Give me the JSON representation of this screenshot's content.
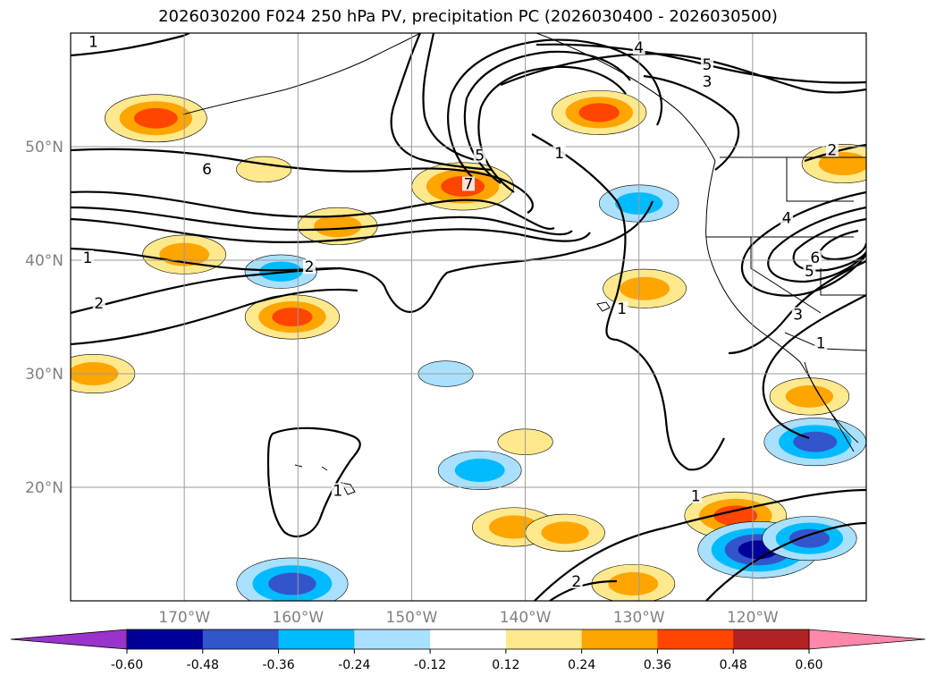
{
  "chart_data": {
    "type": "map-contour",
    "title": "2026030200 F024 250 hPa PV, precipitation PC (2026030400 - 2026030500)",
    "lat_range": [
      10,
      60
    ],
    "lon_range": [
      -180,
      -110
    ],
    "lat_ticks": [
      {
        "value": 50,
        "label": "50°N"
      },
      {
        "value": 40,
        "label": "40°N"
      },
      {
        "value": 30,
        "label": "30°N"
      },
      {
        "value": 20,
        "label": "20°N"
      }
    ],
    "lon_ticks": [
      {
        "value": -170,
        "label": "170°W"
      },
      {
        "value": -160,
        "label": "160°W"
      },
      {
        "value": -150,
        "label": "150°W"
      },
      {
        "value": -140,
        "label": "140°W"
      },
      {
        "value": -130,
        "label": "130°W"
      },
      {
        "value": -120,
        "label": "120°W"
      }
    ],
    "grid": true,
    "colorbar": {
      "levels": [
        "-0.60",
        "-0.48",
        "-0.36",
        "-0.24",
        "-0.12",
        "0.12",
        "0.24",
        "0.36",
        "0.48",
        "0.60"
      ],
      "colors": [
        "#9933cc",
        "#000099",
        "#3355cc",
        "#00bbff",
        "#aae0ff",
        "#ffffff",
        "#ffe98c",
        "#ffa500",
        "#ff4500",
        "#b22222",
        "#ff88aa"
      ],
      "extend": "both"
    },
    "pv_contour_labels": [
      {
        "text": "1",
        "lat": 59.0,
        "lon": -178.0
      },
      {
        "text": "6",
        "lat": 47.8,
        "lon": -168.0
      },
      {
        "text": "5",
        "lat": 49.0,
        "lon": -144.0
      },
      {
        "text": "7",
        "lat": 46.5,
        "lon": -145.0
      },
      {
        "text": "1",
        "lat": 49.2,
        "lon": -137.0
      },
      {
        "text": "4",
        "lat": 58.5,
        "lon": -130.0
      },
      {
        "text": "5",
        "lat": 57.0,
        "lon": -124.0
      },
      {
        "text": "3",
        "lat": 55.5,
        "lon": -124.0
      },
      {
        "text": "2",
        "lat": 49.5,
        "lon": -113.0
      },
      {
        "text": "4",
        "lat": 43.5,
        "lon": -117.0
      },
      {
        "text": "6",
        "lat": 40.0,
        "lon": -114.5
      },
      {
        "text": "5",
        "lat": 38.8,
        "lon": -115.0
      },
      {
        "text": "1",
        "lat": 40.0,
        "lon": -178.5
      },
      {
        "text": "2",
        "lat": 39.2,
        "lon": -159.0
      },
      {
        "text": "2",
        "lat": 36.0,
        "lon": -177.5
      },
      {
        "text": "1",
        "lat": 35.5,
        "lon": -131.5
      },
      {
        "text": "3",
        "lat": 35.0,
        "lon": -116.0
      },
      {
        "text": "1",
        "lat": 32.5,
        "lon": -114.0
      },
      {
        "text": "1",
        "lat": 19.5,
        "lon": -156.5
      },
      {
        "text": "1",
        "lat": 19.0,
        "lon": -125.0
      },
      {
        "text": "2",
        "lat": 11.5,
        "lon": -135.5
      }
    ],
    "precipitation_pc_areas": [
      {
        "lat": 52.5,
        "lon": -172.5,
        "value": 0.4
      },
      {
        "lat": 53.0,
        "lon": -133.5,
        "value": 0.36
      },
      {
        "lat": 46.5,
        "lon": -145.5,
        "value": 0.4
      },
      {
        "lat": 48.5,
        "lon": -112.0,
        "value": 0.3
      },
      {
        "lat": 40.5,
        "lon": -170.0,
        "value": 0.3
      },
      {
        "lat": 43.0,
        "lon": -156.5,
        "value": 0.28
      },
      {
        "lat": 35.0,
        "lon": -160.5,
        "value": 0.36
      },
      {
        "lat": 37.5,
        "lon": -129.5,
        "value": 0.3
      },
      {
        "lat": 30.0,
        "lon": -178.0,
        "value": 0.3
      },
      {
        "lat": 28.0,
        "lon": -115.0,
        "value": 0.28
      },
      {
        "lat": 17.5,
        "lon": -121.5,
        "value": 0.4
      },
      {
        "lat": 11.5,
        "lon": -130.5,
        "value": 0.3
      },
      {
        "lat": 16.5,
        "lon": -141.0,
        "value": 0.3
      },
      {
        "lat": 24.0,
        "lon": -140.0,
        "value": 0.15
      },
      {
        "lat": 16.0,
        "lon": -136.5,
        "value": 0.28
      },
      {
        "lat": 48.0,
        "lon": -163.0,
        "value": 0.15
      },
      {
        "lat": 11.5,
        "lon": -160.5,
        "value": -0.45
      },
      {
        "lat": 14.5,
        "lon": -119.5,
        "value": -0.5
      },
      {
        "lat": 15.5,
        "lon": -115.0,
        "value": -0.36
      },
      {
        "lat": 24.0,
        "lon": -114.5,
        "value": -0.4
      },
      {
        "lat": 21.5,
        "lon": -144.0,
        "value": -0.3
      },
      {
        "lat": 45.0,
        "lon": -130.0,
        "value": -0.28
      },
      {
        "lat": 39.0,
        "lon": -161.5,
        "value": -0.24
      },
      {
        "lat": 30.0,
        "lon": -147.0,
        "value": -0.15
      }
    ]
  }
}
